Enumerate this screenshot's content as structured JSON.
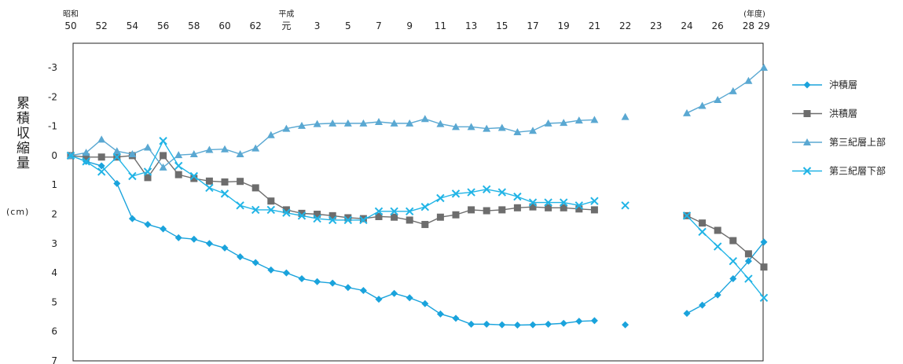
{
  "chart_data": {
    "type": "line",
    "ylabel": "累積収縮量",
    "yunit": "(cm)",
    "x_era_labels": [
      {
        "at": 50,
        "text": "昭和"
      },
      {
        "at": 64,
        "text": "平成"
      }
    ],
    "x_unit": "(年度)",
    "x_ticks": [
      {
        "at": 50,
        "label": "50"
      },
      {
        "at": 52,
        "label": "52"
      },
      {
        "at": 54,
        "label": "54"
      },
      {
        "at": 56,
        "label": "56"
      },
      {
        "at": 58,
        "label": "58"
      },
      {
        "at": 60,
        "label": "60"
      },
      {
        "at": 62,
        "label": "62"
      },
      {
        "at": 64,
        "label": "元"
      },
      {
        "at": 66,
        "label": "3"
      },
      {
        "at": 68,
        "label": "5"
      },
      {
        "at": 70,
        "label": "7"
      },
      {
        "at": 72,
        "label": "9"
      },
      {
        "at": 74,
        "label": "11"
      },
      {
        "at": 76,
        "label": "13"
      },
      {
        "at": 78,
        "label": "15"
      },
      {
        "at": 80,
        "label": "17"
      },
      {
        "at": 82,
        "label": "19"
      },
      {
        "at": 84,
        "label": "21"
      },
      {
        "at": 86,
        "label": "22"
      },
      {
        "at": 88,
        "label": "23"
      },
      {
        "at": 90,
        "label": "24"
      },
      {
        "at": 92,
        "label": "26"
      },
      {
        "at": 94,
        "label": "28"
      },
      {
        "at": 95,
        "label": "29"
      }
    ],
    "x_range": [
      50,
      95
    ],
    "y_ticks": [
      -3,
      -2,
      -1,
      0,
      1,
      2,
      3,
      4,
      5,
      6,
      7
    ],
    "ylim": [
      -3.7,
      7
    ],
    "y_inverted": true,
    "legend_position": "right",
    "series": [
      {
        "name": "沖積層",
        "color": "#1aa3dc",
        "marker": "diamond",
        "segments": [
          [
            [
              50,
              0
            ],
            [
              51,
              0.2
            ],
            [
              52,
              0.35
            ],
            [
              53,
              0.95
            ],
            [
              54,
              2.15
            ],
            [
              55,
              2.35
            ],
            [
              56,
              2.5
            ],
            [
              57,
              2.8
            ],
            [
              58,
              2.85
            ],
            [
              59,
              3.0
            ],
            [
              60,
              3.15
            ],
            [
              61,
              3.45
            ],
            [
              62,
              3.65
            ],
            [
              63,
              3.9
            ],
            [
              64,
              4.0
            ],
            [
              65,
              4.2
            ],
            [
              66,
              4.3
            ],
            [
              67,
              4.35
            ],
            [
              68,
              4.5
            ],
            [
              69,
              4.6
            ],
            [
              70,
              4.9
            ],
            [
              71,
              4.7
            ],
            [
              72,
              4.85
            ],
            [
              73,
              5.05
            ],
            [
              74,
              5.4
            ],
            [
              75,
              5.55
            ],
            [
              76,
              5.75
            ],
            [
              77,
              5.75
            ],
            [
              78,
              5.77
            ],
            [
              79,
              5.78
            ],
            [
              80,
              5.77
            ],
            [
              81,
              5.75
            ],
            [
              82,
              5.72
            ],
            [
              83,
              5.65
            ],
            [
              84,
              5.63
            ]
          ],
          [
            [
              86,
              5.77
            ]
          ],
          [
            [
              90,
              5.38
            ],
            [
              91,
              5.1
            ],
            [
              92,
              4.75
            ],
            [
              93,
              4.2
            ],
            [
              94,
              3.6
            ],
            [
              95,
              2.95
            ]
          ]
        ]
      },
      {
        "name": "洪積層",
        "color": "#6d6d6d",
        "marker": "square",
        "segments": [
          [
            [
              50,
              0
            ],
            [
              51,
              0.05
            ],
            [
              52,
              0.05
            ],
            [
              53,
              0.05
            ],
            [
              54,
              0
            ],
            [
              55,
              0.75
            ],
            [
              56,
              0
            ],
            [
              57,
              0.65
            ],
            [
              58,
              0.78
            ],
            [
              59,
              0.87
            ],
            [
              60,
              0.9
            ],
            [
              61,
              0.88
            ],
            [
              62,
              1.1
            ],
            [
              63,
              1.55
            ],
            [
              64,
              1.85
            ],
            [
              65,
              1.97
            ],
            [
              66,
              2.0
            ],
            [
              67,
              2.05
            ],
            [
              68,
              2.12
            ],
            [
              69,
              2.15
            ],
            [
              70,
              2.08
            ],
            [
              71,
              2.1
            ],
            [
              72,
              2.2
            ],
            [
              73,
              2.35
            ],
            [
              74,
              2.1
            ],
            [
              75,
              2.02
            ],
            [
              76,
              1.85
            ],
            [
              77,
              1.88
            ],
            [
              78,
              1.85
            ],
            [
              79,
              1.78
            ],
            [
              80,
              1.75
            ],
            [
              81,
              1.78
            ],
            [
              82,
              1.78
            ],
            [
              83,
              1.82
            ],
            [
              84,
              1.85
            ]
          ],
          [
            [
              90,
              2.05
            ],
            [
              91,
              2.3
            ],
            [
              92,
              2.55
            ],
            [
              93,
              2.9
            ],
            [
              94,
              3.35
            ],
            [
              95,
              3.8
            ]
          ]
        ]
      },
      {
        "name": "第三紀層上部",
        "color": "#5aa8d2",
        "marker": "triangle",
        "segments": [
          [
            [
              50,
              0
            ],
            [
              51,
              -0.1
            ],
            [
              52,
              -0.55
            ],
            [
              53,
              -0.15
            ],
            [
              54,
              -0.05
            ],
            [
              55,
              -0.28
            ],
            [
              56,
              0.4
            ],
            [
              57,
              -0.02
            ],
            [
              58,
              -0.05
            ],
            [
              59,
              -0.2
            ],
            [
              60,
              -0.22
            ],
            [
              61,
              -0.05
            ],
            [
              62,
              -0.25
            ],
            [
              63,
              -0.7
            ],
            [
              64,
              -0.92
            ],
            [
              65,
              -1.02
            ],
            [
              66,
              -1.08
            ],
            [
              67,
              -1.1
            ],
            [
              68,
              -1.1
            ],
            [
              69,
              -1.1
            ],
            [
              70,
              -1.15
            ],
            [
              71,
              -1.1
            ],
            [
              72,
              -1.1
            ],
            [
              73,
              -1.25
            ],
            [
              74,
              -1.08
            ],
            [
              75,
              -0.98
            ],
            [
              76,
              -0.98
            ],
            [
              77,
              -0.92
            ],
            [
              78,
              -0.95
            ],
            [
              79,
              -0.8
            ],
            [
              80,
              -0.85
            ],
            [
              81,
              -1.1
            ],
            [
              82,
              -1.12
            ],
            [
              83,
              -1.2
            ],
            [
              84,
              -1.22
            ]
          ],
          [
            [
              86,
              -1.32
            ]
          ],
          [
            [
              90,
              -1.45
            ],
            [
              91,
              -1.7
            ],
            [
              92,
              -1.9
            ],
            [
              93,
              -2.2
            ],
            [
              94,
              -2.55
            ],
            [
              95,
              -3.0
            ]
          ]
        ]
      },
      {
        "name": "第三紀層下部",
        "color": "#21b4e6",
        "marker": "x",
        "segments": [
          [
            [
              50,
              0
            ],
            [
              51,
              0.2
            ],
            [
              52,
              0.55
            ],
            [
              53,
              0.05
            ],
            [
              54,
              0.7
            ],
            [
              55,
              0.55
            ],
            [
              56,
              -0.5
            ],
            [
              57,
              0.35
            ],
            [
              58,
              0.7
            ],
            [
              59,
              1.1
            ],
            [
              60,
              1.3
            ],
            [
              61,
              1.7
            ],
            [
              62,
              1.85
            ],
            [
              63,
              1.85
            ],
            [
              64,
              1.95
            ],
            [
              65,
              2.05
            ],
            [
              66,
              2.15
            ],
            [
              67,
              2.2
            ],
            [
              68,
              2.2
            ],
            [
              69,
              2.2
            ],
            [
              70,
              1.9
            ],
            [
              71,
              1.9
            ],
            [
              72,
              1.9
            ],
            [
              73,
              1.75
            ],
            [
              74,
              1.45
            ],
            [
              75,
              1.3
            ],
            [
              76,
              1.25
            ],
            [
              77,
              1.15
            ],
            [
              78,
              1.25
            ],
            [
              79,
              1.4
            ],
            [
              80,
              1.6
            ],
            [
              81,
              1.6
            ],
            [
              82,
              1.6
            ],
            [
              83,
              1.7
            ],
            [
              84,
              1.55
            ]
          ],
          [
            [
              86,
              1.7
            ]
          ],
          [
            [
              90,
              2.05
            ],
            [
              91,
              2.6
            ],
            [
              92,
              3.1
            ],
            [
              93,
              3.6
            ],
            [
              94,
              4.2
            ],
            [
              95,
              4.85
            ]
          ]
        ]
      }
    ]
  }
}
